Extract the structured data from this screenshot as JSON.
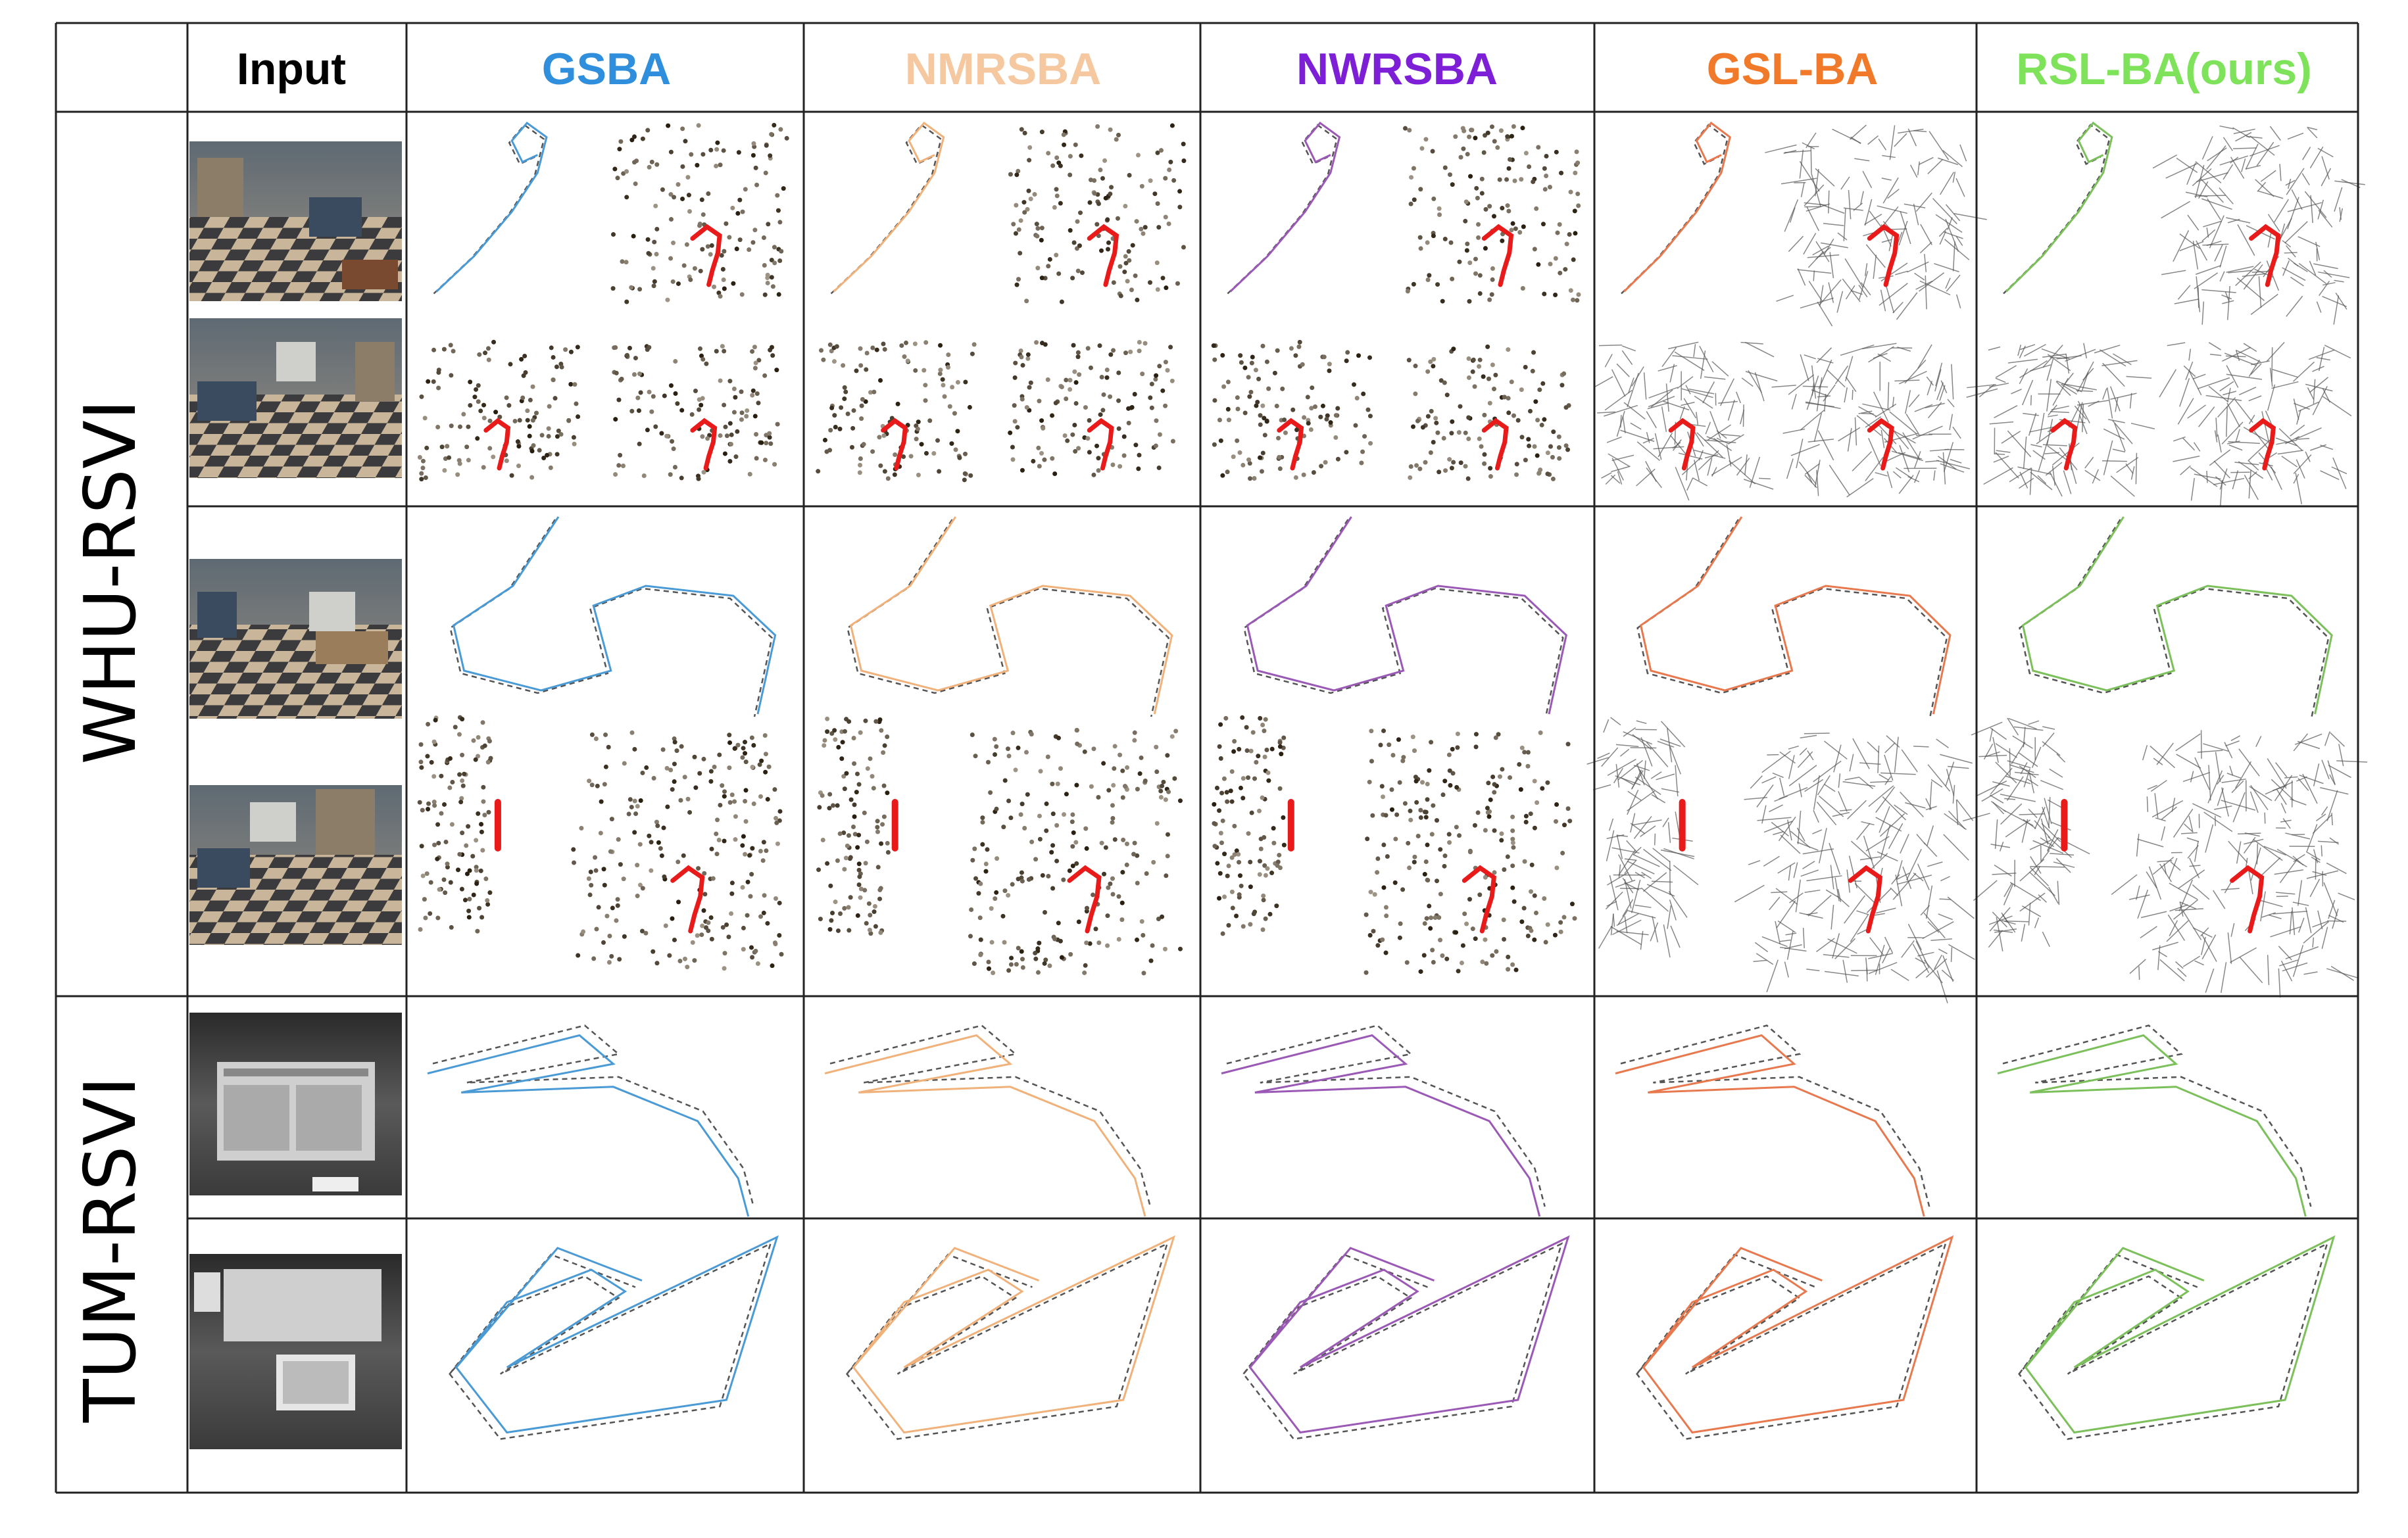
{
  "header": {
    "input_label": "Input",
    "methods": [
      {
        "label": "GSBA",
        "color": "#2f8fdc"
      },
      {
        "label": "NMRSBA",
        "color": "#f5c8a0"
      },
      {
        "label": "NWRSBA",
        "color": "#7d1fd6"
      },
      {
        "label": "GSL-BA",
        "color": "#f07a2a"
      },
      {
        "label": "RSL-BA(ours)",
        "color": "#7ee35b"
      }
    ]
  },
  "rows": [
    {
      "dataset": "WHU-RSVI"
    },
    {
      "dataset": "TUM-RSVI"
    }
  ],
  "colors": {
    "gsba": "#4a9ad6",
    "nmrsba": "#f0b27a",
    "nwrsba": "#9b59b6",
    "gslba": "#e8794f",
    "rslba": "#7bc05a",
    "ground_truth": "#555555",
    "trajectory_overlay": "#e81a1a",
    "grid": "#222222"
  },
  "icons": {
    "input_frame": "office-render-thumbnail",
    "tum_frame": "grayscale-lab-thumbnail"
  }
}
